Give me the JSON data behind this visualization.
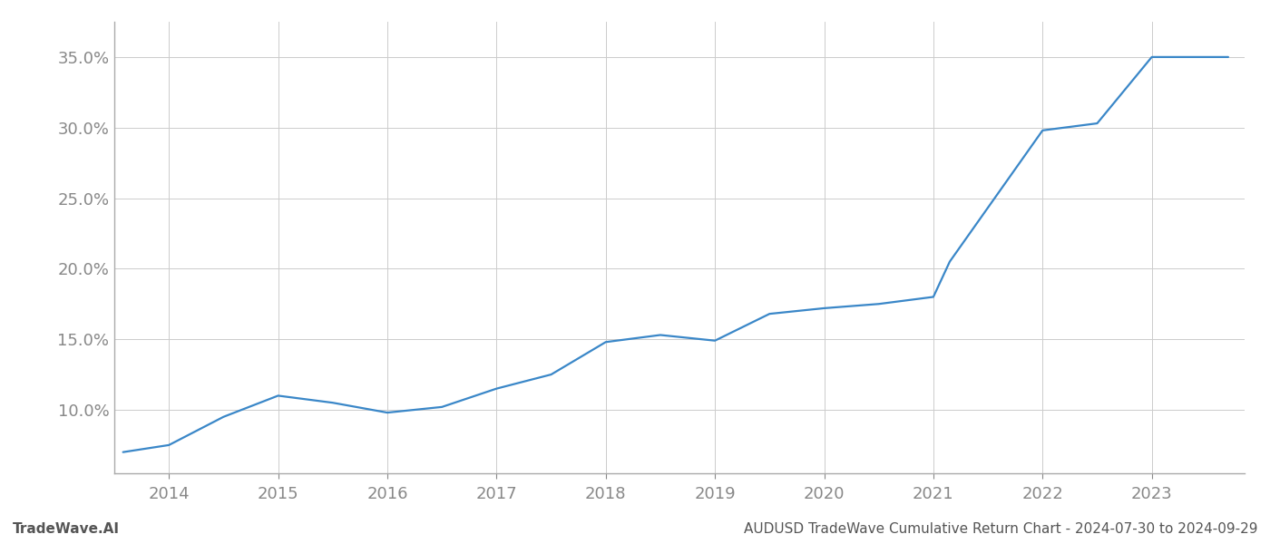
{
  "x_years": [
    2013.58,
    2014.0,
    2014.5,
    2015.0,
    2015.5,
    2016.0,
    2016.5,
    2017.0,
    2017.5,
    2018.0,
    2018.5,
    2019.0,
    2019.5,
    2020.0,
    2020.5,
    2021.0,
    2021.15,
    2022.0,
    2022.5,
    2023.0,
    2023.7
  ],
  "y_values": [
    7.0,
    7.5,
    9.5,
    11.0,
    10.5,
    9.8,
    10.2,
    11.5,
    12.5,
    14.8,
    15.3,
    14.9,
    16.8,
    17.2,
    17.5,
    18.0,
    20.5,
    29.8,
    30.3,
    35.0,
    35.0
  ],
  "line_color": "#3a87c8",
  "line_width": 1.6,
  "footer_left": "TradeWave.AI",
  "footer_right": "AUDUSD TradeWave Cumulative Return Chart - 2024-07-30 to 2024-09-29",
  "xlim": [
    2013.5,
    2023.85
  ],
  "ylim": [
    5.5,
    37.5
  ],
  "yticks": [
    10.0,
    15.0,
    20.0,
    25.0,
    30.0,
    35.0
  ],
  "ytick_labels": [
    "10.0%",
    "15.0%",
    "20.0%",
    "25.0%",
    "30.0%",
    "35.0%"
  ],
  "xticks": [
    2014,
    2015,
    2016,
    2017,
    2018,
    2019,
    2020,
    2021,
    2022,
    2023
  ],
  "background_color": "#ffffff",
  "grid_color": "#cccccc",
  "tick_color": "#888888",
  "footer_font_color": "#555555"
}
